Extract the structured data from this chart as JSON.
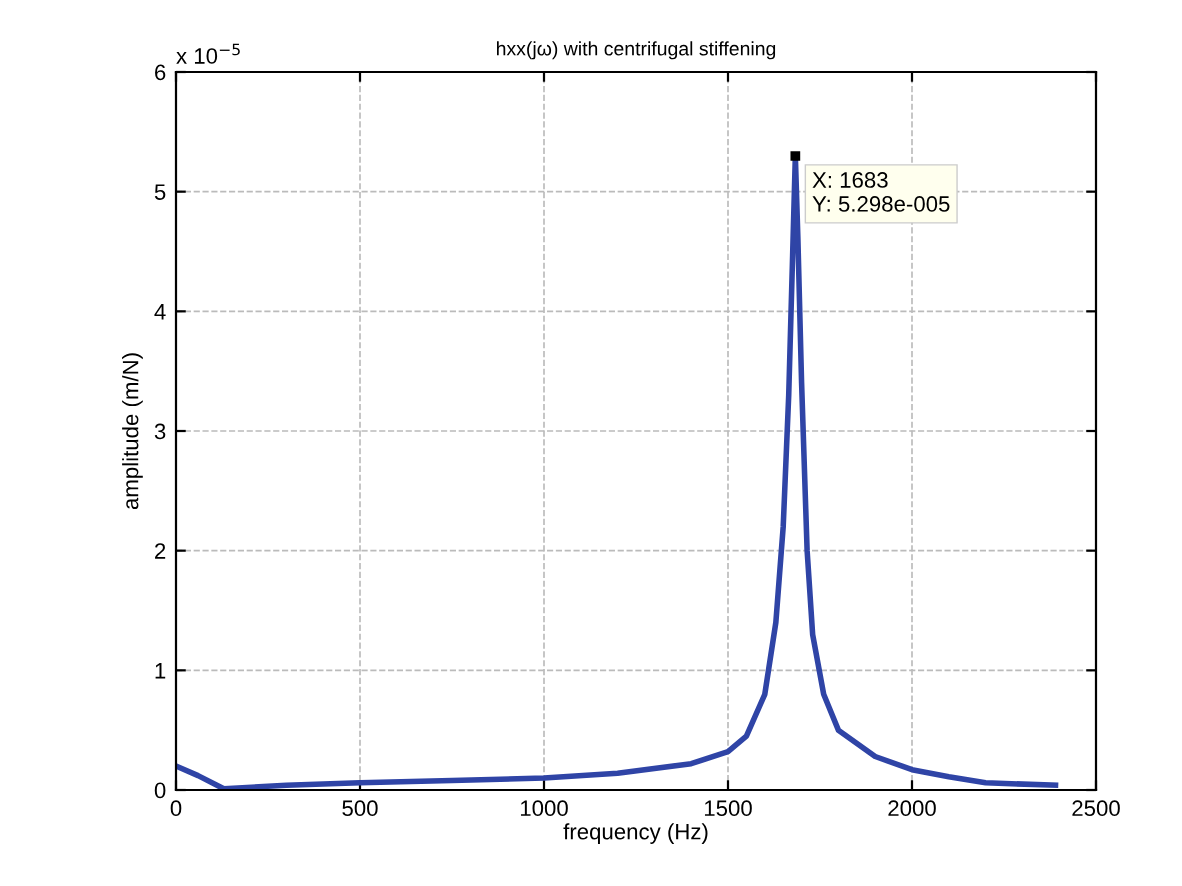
{
  "chart_data": {
    "type": "line",
    "title": "hxx(jω) with centrifugal stiffening",
    "xlabel": "frequency (Hz)",
    "ylabel": "amplitude (m/N)",
    "x": [
      0,
      60,
      130,
      300,
      500,
      750,
      1000,
      1200,
      1400,
      1500,
      1550,
      1600,
      1630,
      1650,
      1665,
      1675,
      1683,
      1690,
      1700,
      1715,
      1730,
      1760,
      1800,
      1900,
      2000,
      2100,
      2200,
      2390
    ],
    "series": [
      {
        "color": "#2f44a6",
        "values": [
          0.2,
          0.12,
          0.01,
          0.04,
          0.06,
          0.08,
          0.1,
          0.14,
          0.22,
          0.32,
          0.45,
          0.8,
          1.4,
          2.2,
          3.3,
          4.4,
          5.298,
          4.6,
          3.4,
          2.0,
          1.3,
          0.8,
          0.5,
          0.28,
          0.17,
          0.11,
          0.06,
          0.04
        ]
      }
    ],
    "xlim": [
      0,
      2500
    ],
    "xticks": [
      0,
      500,
      1000,
      1500,
      2000,
      2500
    ],
    "ylim": [
      0,
      6
    ],
    "yticks": [
      0,
      1,
      2,
      3,
      4,
      5,
      6
    ],
    "annotations": [
      "x 10$^{−5}$",
      {
        "text": "X: 1683\nY: 5.298e-005",
        "x": 1683,
        "y": 5.298
      }
    ],
    "grid": true,
    "marker": "none",
    "line_style": "solid"
  }
}
